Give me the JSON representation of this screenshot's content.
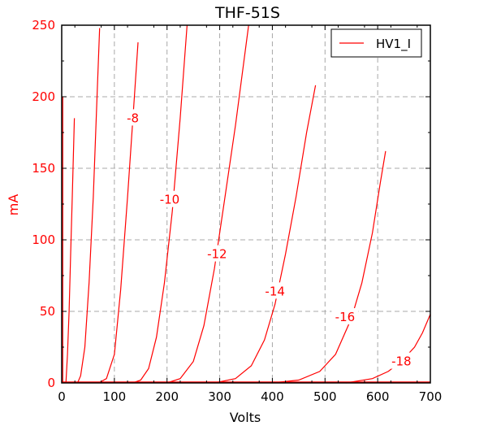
{
  "chart_data": {
    "type": "line",
    "title": "THF-51S",
    "xlabel": "Volts",
    "ylabel": "mA",
    "xlim": [
      0,
      700
    ],
    "ylim": [
      0,
      250
    ],
    "xticks": [
      0,
      100,
      200,
      300,
      400,
      500,
      600,
      700
    ],
    "yticks": [
      0,
      50,
      100,
      150,
      200,
      250
    ],
    "grid": true,
    "legend": {
      "position": "top-right",
      "entries": [
        "HV1_I"
      ]
    },
    "series_color": "#ff0000",
    "series": [
      {
        "name": "HV1_I",
        "curve_label": "",
        "x": [
          2,
          2,
          2,
          2
        ],
        "y": [
          0,
          30,
          100,
          200
        ]
      },
      {
        "name": "HV1_I",
        "curve_label": "",
        "x": [
          8,
          11,
          14,
          17,
          20,
          24
        ],
        "y": [
          0,
          20,
          50,
          90,
          130,
          185
        ]
      },
      {
        "name": "HV1_I",
        "curve_label": "",
        "x": [
          30,
          36,
          44,
          52,
          60,
          67,
          72
        ],
        "y": [
          0,
          5,
          25,
          70,
          130,
          200,
          248
        ]
      },
      {
        "name": "HV1_I",
        "curve_label": "-8",
        "x": [
          70,
          85,
          100,
          112,
          125,
          138,
          145
        ],
        "y": [
          0,
          3,
          20,
          65,
          130,
          200,
          238
        ]
      },
      {
        "name": "HV1_I",
        "curve_label": "-10",
        "x": [
          135,
          150,
          165,
          180,
          195,
          210,
          225,
          238
        ],
        "y": [
          0,
          2,
          10,
          32,
          70,
          120,
          185,
          250
        ]
      },
      {
        "name": "HV1_I",
        "curve_label": "-12",
        "x": [
          200,
          225,
          250,
          270,
          290,
          310,
          330,
          355
        ],
        "y": [
          0,
          3,
          15,
          40,
          80,
          130,
          180,
          250
        ]
      },
      {
        "name": "HV1_I",
        "curve_label": "-14",
        "x": [
          290,
          330,
          360,
          385,
          405,
          425,
          445,
          465,
          482
        ],
        "y": [
          0,
          3,
          12,
          30,
          55,
          90,
          130,
          175,
          208
        ]
      },
      {
        "name": "HV1_I",
        "curve_label": "-16",
        "x": [
          400,
          450,
          490,
          520,
          550,
          570,
          590,
          605,
          615
        ],
        "y": [
          0,
          2,
          8,
          20,
          45,
          70,
          105,
          140,
          162
        ]
      },
      {
        "name": "HV1_I",
        "curve_label": "-18",
        "x": [
          540,
          590,
          620,
          645,
          670,
          685,
          700
        ],
        "y": [
          0,
          3,
          8,
          15,
          25,
          35,
          48
        ]
      }
    ],
    "curve_label_positions": [
      {
        "text": "-8",
        "x": 135,
        "y": 185
      },
      {
        "text": "-10",
        "x": 205,
        "y": 128
      },
      {
        "text": "-12",
        "x": 295,
        "y": 90
      },
      {
        "text": "-14",
        "x": 405,
        "y": 64
      },
      {
        "text": "-16",
        "x": 538,
        "y": 46
      },
      {
        "text": "-18",
        "x": 645,
        "y": 15
      }
    ]
  }
}
